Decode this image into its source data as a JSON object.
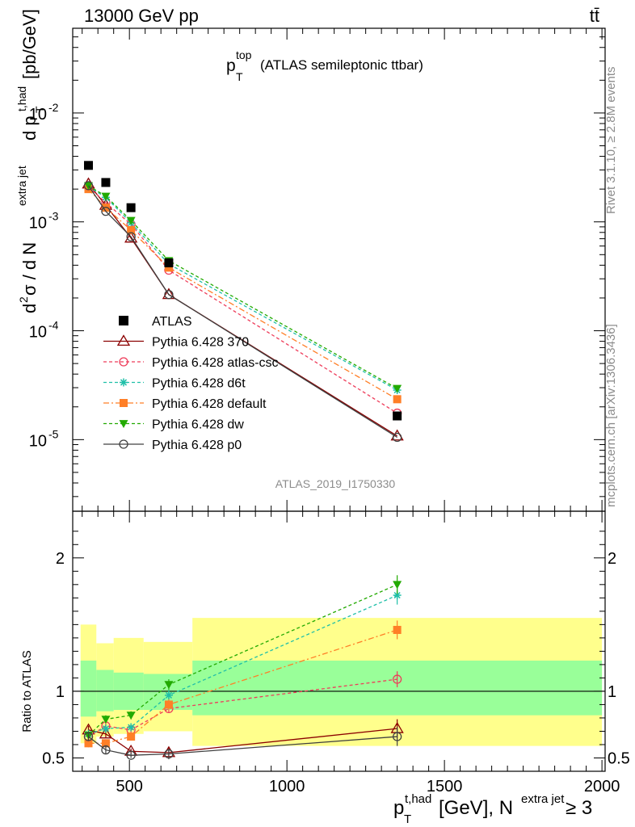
{
  "header": {
    "left": "13000 GeV pp",
    "right": "tt̄"
  },
  "side": {
    "rivet": "Rivet 3.1.10, ≥ 2.8M events",
    "mcplots": "mcplots.cern.ch [arXiv:1306.3436]"
  },
  "chart_data": {
    "type": "line",
    "title": "(ATLAS semileptonic ttbar)",
    "title_var": "p",
    "title_sup": "top",
    "title_sub": "T",
    "analysis": "ATLAS_2019_I1750330",
    "ylabel": "d²σ / d N^{extra jet} d p_T^{t,had} [pb/GeV]",
    "ylabel_main": "σ / d N",
    "ylabel_d": "d",
    "ylabel_2": "2",
    "ylabel_extra": "extra jet",
    "ylabel_dp": "d p",
    "ylabel_T": "T",
    "ylabel_thad": "t,had",
    "ylabel_units": "[pb/GeV]",
    "xlabel_p": "p",
    "xlabel_T": "T",
    "xlabel_thad": "t,had",
    "xlabel_mid": "[GeV], N",
    "xlabel_extra": "extra jet",
    "xlabel_end": "≥ 3",
    "ratio_ylabel": "Ratio to ATLAS",
    "xlim": [
      320,
      2010
    ],
    "ylim": [
      2.2e-06,
      0.06
    ],
    "yscale": "log",
    "ratio_ylim": [
      0.4,
      2.35
    ],
    "x_ticks": [
      500,
      1000,
      1500,
      2000
    ],
    "y_ticks": [
      {
        "value": 0.01,
        "base": "10",
        "exp": "-2"
      },
      {
        "value": 0.001,
        "base": "10",
        "exp": "-3"
      },
      {
        "value": 0.0001,
        "base": "10",
        "exp": "-4"
      },
      {
        "value": 1e-05,
        "base": "10",
        "exp": "-5"
      }
    ],
    "ratio_ticks": [
      {
        "value": 2,
        "label": "2"
      },
      {
        "value": 1,
        "label": "1"
      },
      {
        "value": 0.5,
        "label": "0.5"
      }
    ],
    "x": [
      370,
      425,
      505,
      625,
      1350
    ],
    "bands": [
      {
        "x0": 345,
        "x1": 395,
        "y1_lo": 0.81,
        "y1_hi": 1.23,
        "y2_lo": 0.61,
        "y2_hi": 1.5
      },
      {
        "x0": 395,
        "x1": 450,
        "y1_lo": 0.85,
        "y1_hi": 1.16,
        "y2_lo": 0.66,
        "y2_hi": 1.36
      },
      {
        "x0": 450,
        "x1": 545,
        "y1_lo": 0.86,
        "y1_hi": 1.14,
        "y2_lo": 0.68,
        "y2_hi": 1.4
      },
      {
        "x0": 545,
        "x1": 700,
        "y1_lo": 0.86,
        "y1_hi": 1.13,
        "y2_lo": 0.7,
        "y2_hi": 1.37
      },
      {
        "x0": 700,
        "x1": 2000,
        "y1_lo": 0.82,
        "y1_hi": 1.23,
        "y2_lo": 0.59,
        "y2_hi": 1.55
      }
    ],
    "series": [
      {
        "name": "ATLAS",
        "kind": "data",
        "color": "#000000",
        "marker": "square",
        "values": [
          0.0033,
          0.0023,
          0.00135,
          0.00042,
          1.65e-05
        ],
        "ratio": [
          1,
          1,
          1,
          1,
          1
        ],
        "ratio_err": [
          0,
          0,
          0,
          0,
          0
        ]
      },
      {
        "name": "Pythia 6.428 370",
        "color": "#8b0000",
        "marker": "triangle-open",
        "dash": "solid",
        "values": [
          0.00223,
          0.00142,
          0.00071,
          0.000215,
          1.08e-05
        ],
        "ratio": [
          0.71,
          0.68,
          0.55,
          0.54,
          0.72
        ],
        "ratio_err": [
          0.03,
          0.03,
          0.02,
          0.04,
          0.07
        ]
      },
      {
        "name": "Pythia 6.428 atlas-csc",
        "color": "#ee3c5a",
        "marker": "circle-open",
        "dash": "4,3",
        "values": [
          0.0021,
          0.0015,
          0.00095,
          0.00036,
          1.75e-05
        ],
        "ratio": [
          0.66,
          0.74,
          0.71,
          0.87,
          1.09
        ],
        "ratio_err": [
          0.03,
          0.03,
          0.02,
          0.03,
          0.06
        ]
      },
      {
        "name": "Pythia 6.428 d6t",
        "color": "#1fbfa8",
        "marker": "star",
        "dash": "4,3",
        "values": [
          0.0021,
          0.00168,
          0.00098,
          0.00041,
          2.85e-05
        ],
        "ratio": [
          0.68,
          0.72,
          0.73,
          0.97,
          1.72
        ],
        "ratio_err": [
          0.03,
          0.03,
          0.02,
          0.04,
          0.07
        ]
      },
      {
        "name": "Pythia 6.428 default",
        "color": "#ff7f27",
        "marker": "square",
        "dash": "7,3,2,3",
        "values": [
          0.002,
          0.00135,
          0.00084,
          0.00038,
          2.35e-05
        ],
        "ratio": [
          0.61,
          0.61,
          0.66,
          0.9,
          1.46
        ],
        "ratio_err": [
          0.03,
          0.03,
          0.03,
          0.04,
          0.07
        ]
      },
      {
        "name": "Pythia 6.428 dw",
        "color": "#22aa00",
        "marker": "triangle-down",
        "dash": "4,3",
        "values": [
          0.00215,
          0.00172,
          0.00103,
          0.00044,
          2.95e-05
        ],
        "ratio": [
          0.67,
          0.79,
          0.82,
          1.05,
          1.8
        ],
        "ratio_err": [
          0.03,
          0.03,
          0.03,
          0.04,
          0.07
        ]
      },
      {
        "name": "Pythia 6.428 p0",
        "color": "#404040",
        "marker": "circle-open",
        "dash": "solid",
        "values": [
          0.00215,
          0.00125,
          0.00073,
          0.000215,
          1.05e-05
        ],
        "ratio": [
          0.66,
          0.56,
          0.52,
          0.53,
          0.66
        ],
        "ratio_err": [
          0.03,
          0.03,
          0.02,
          0.04,
          0.07
        ]
      }
    ]
  }
}
